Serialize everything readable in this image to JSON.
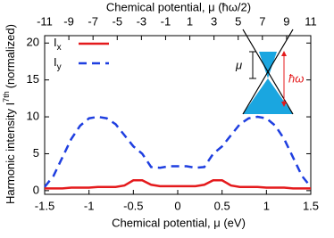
{
  "chart_data": {
    "type": "line",
    "xlabel": "Chemical potential, μ (eV)",
    "x2label": "Chemical potential, μ (ħω/2)",
    "ylabel": "Harmonic intensity I",
    "ylabel_sup": "7th",
    "ylabel_end": "(normalized)",
    "x": [
      -1.5,
      -1.4,
      -1.3,
      -1.2,
      -1.1,
      -1.0,
      -0.9,
      -0.8,
      -0.7,
      -0.6,
      -0.5,
      -0.4,
      -0.3,
      -0.2,
      -0.1,
      0,
      0.1,
      0.2,
      0.3,
      0.4,
      0.5,
      0.6,
      0.7,
      0.8,
      0.9,
      1.0,
      1.1,
      1.2,
      1.3,
      1.4,
      1.5
    ],
    "series": [
      {
        "name": "I",
        "name_sub": "x",
        "color": "#e41a1c",
        "dash": false,
        "values": [
          0.3,
          0.3,
          0.3,
          0.4,
          0.4,
          0.4,
          0.5,
          0.5,
          0.5,
          0.7,
          1.4,
          1.4,
          0.8,
          0.6,
          0.6,
          0.6,
          0.6,
          0.6,
          0.8,
          1.4,
          1.4,
          0.7,
          0.5,
          0.5,
          0.5,
          0.4,
          0.4,
          0.4,
          0.3,
          0.3,
          0.3
        ]
      },
      {
        "name": "I",
        "name_sub": "y",
        "color": "#1f3fe0",
        "dash": true,
        "values": [
          0.5,
          2,
          4.5,
          7,
          8.8,
          9.8,
          10,
          9.8,
          9,
          7.5,
          6,
          5,
          3.2,
          3.1,
          3.3,
          3.3,
          3.3,
          3.1,
          3.2,
          5,
          6,
          7.5,
          9,
          9.8,
          10,
          9.8,
          8.8,
          7,
          4.5,
          2,
          0.5
        ]
      }
    ],
    "xlim": [
      -1.5,
      1.5
    ],
    "xticks": [
      -1.5,
      -1,
      -0.5,
      0,
      0.5,
      1,
      1.5
    ],
    "x2lim": [
      -11,
      11
    ],
    "x2ticks": [
      -11,
      -9,
      -7,
      -5,
      -3,
      -1,
      1,
      3,
      5,
      7,
      9,
      11
    ],
    "ylim": [
      -0.5,
      21
    ],
    "yticks": [
      0,
      5,
      10,
      15,
      20
    ],
    "annotations": [
      "μ",
      "ħω"
    ]
  }
}
